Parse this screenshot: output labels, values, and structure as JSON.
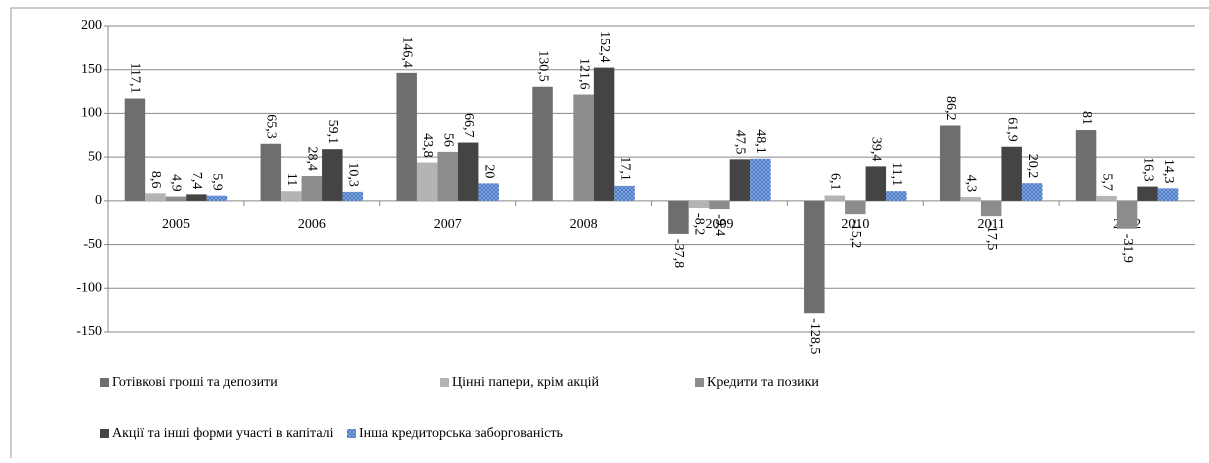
{
  "chart_data": {
    "type": "bar",
    "categories": [
      "2005",
      "2006",
      "2007",
      "2008",
      "2009",
      "2010",
      "2011",
      "2012"
    ],
    "series": [
      {
        "name": "Готівкові гроші та депозити",
        "color": "#6e6e6e",
        "values": [
          117.1,
          65.3,
          146.4,
          130.5,
          -37.8,
          -128.5,
          86.2,
          81
        ],
        "value_labels": [
          "117,1",
          "65,3",
          "146,4",
          "130,5",
          "-37,8",
          "-128,5",
          "86,2",
          "81"
        ]
      },
      {
        "name": "Цінні папери, крім акцій",
        "color": "#b4b4b4",
        "values": [
          8.6,
          11,
          43.8,
          null,
          -8.2,
          6.1,
          4.3,
          5.7
        ],
        "value_labels": [
          "8,6",
          "11",
          "43,8",
          null,
          "-8,2",
          "6,1",
          "4,3",
          "5,7"
        ]
      },
      {
        "name": "Кредити та позики",
        "color": "#8c8c8c",
        "values": [
          4.9,
          28.4,
          56,
          121.6,
          -9.4,
          -15.2,
          -17.5,
          -31.9
        ],
        "value_labels": [
          "4,9",
          "28,4",
          "56",
          "121,6",
          "-9,4",
          "-15,2",
          "-17,5",
          "-31,9"
        ]
      },
      {
        "name": "Акції та інші форми участі в капіталі",
        "color": "#444444",
        "values": [
          7.4,
          59.1,
          66.7,
          152.4,
          47.5,
          39.4,
          61.9,
          16.3
        ],
        "value_labels": [
          "7,4",
          "59,1",
          "66,7",
          "152,4",
          "47,5",
          "39,4",
          "61,9",
          "16,3"
        ]
      },
      {
        "name": "Інша кредиторська заборгованість",
        "color": "#8fb1e3",
        "pattern": true,
        "values": [
          5.9,
          10.3,
          20,
          17.1,
          48.1,
          11.1,
          20.2,
          14.3
        ],
        "value_labels": [
          "5,9",
          "10,3",
          "20",
          "17,1",
          "48,1",
          "11,1",
          "20,2",
          "14,3"
        ]
      }
    ],
    "ylim": [
      -150,
      200
    ],
    "yticks": [
      -150,
      -100,
      -50,
      0,
      50,
      100,
      150,
      200
    ],
    "grid": true,
    "legend": "bottom"
  }
}
